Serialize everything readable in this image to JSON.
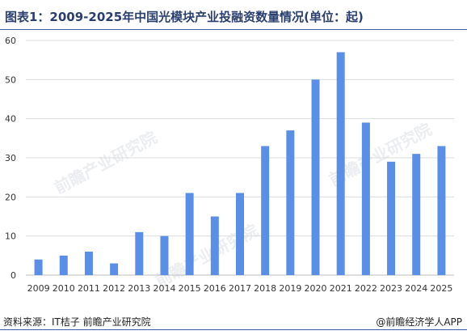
{
  "title": "图表1：2009-2025年中国光模块产业投融资数量情况(单位：起)",
  "source": "资料来源：IT桔子 前瞻产业研究院",
  "credit": "@前瞻经济学人APP",
  "watermark": "前瞻产业研究院",
  "colors": {
    "bar": "#5b8fe6",
    "title": "#2a3f6f",
    "rule": "#3c5aa6",
    "grid": "#dcdcdc"
  },
  "chart_data": {
    "type": "bar",
    "categories": [
      "2009",
      "2010",
      "2011",
      "2012",
      "2013",
      "2014",
      "2015",
      "2016",
      "2017",
      "2018",
      "2019",
      "2020",
      "2021",
      "2022",
      "2023",
      "2024",
      "2025"
    ],
    "values": [
      4,
      5,
      6,
      3,
      11,
      10,
      21,
      15,
      21,
      33,
      37,
      50,
      57,
      39,
      29,
      31,
      33
    ],
    "ylim": [
      0,
      60
    ],
    "yticks": [
      "0",
      "10",
      "20",
      "30",
      "40",
      "50",
      "60"
    ],
    "grid": true,
    "legend": "none"
  }
}
